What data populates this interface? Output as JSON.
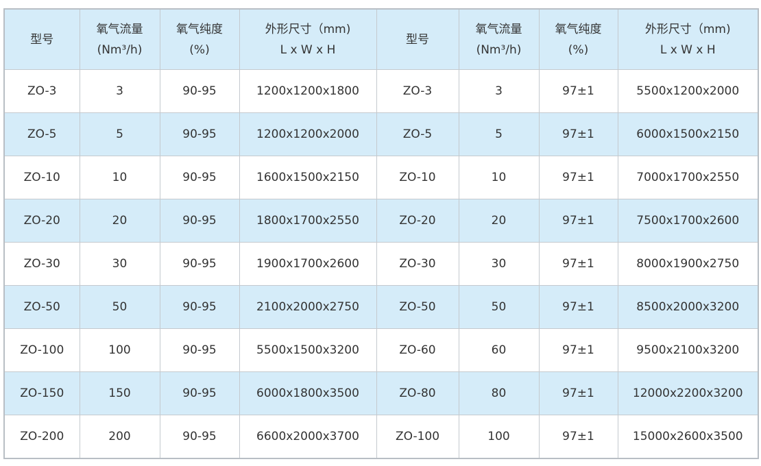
{
  "colors": {
    "header_bg": "#d5ecf9",
    "stripe_bg": "#d5ecf9",
    "border": "#c4c9ce"
  },
  "headers": [
    [
      "型号",
      ""
    ],
    [
      "氧气流量",
      "(Nm³/h)"
    ],
    [
      "氧气纯度",
      "(%)"
    ],
    [
      "外形尺寸（mm)",
      "L x W x H"
    ],
    [
      "型号",
      ""
    ],
    [
      "氧气流量",
      "(Nm³/h)"
    ],
    [
      "氧气纯度",
      "(%)"
    ],
    [
      "外形尺寸（mm)",
      "L x W x H"
    ]
  ],
  "rows": [
    [
      "ZO-3",
      "3",
      "90-95",
      "1200x1200x1800",
      "ZO-3",
      "3",
      "97±1",
      "5500x1200x2000"
    ],
    [
      "ZO-5",
      "5",
      "90-95",
      "1200x1200x2000",
      "ZO-5",
      "5",
      "97±1",
      "6000x1500x2150"
    ],
    [
      "ZO-10",
      "10",
      "90-95",
      "1600x1500x2150",
      "ZO-10",
      "10",
      "97±1",
      "7000x1700x2550"
    ],
    [
      "ZO-20",
      "20",
      "90-95",
      "1800x1700x2550",
      "ZO-20",
      "20",
      "97±1",
      "7500x1700x2600"
    ],
    [
      "ZO-30",
      "30",
      "90-95",
      "1900x1700x2600",
      "ZO-30",
      "30",
      "97±1",
      "8000x1900x2750"
    ],
    [
      "ZO-50",
      "50",
      "90-95",
      "2100x2000x2750",
      "ZO-50",
      "50",
      "97±1",
      "8500x2000x3200"
    ],
    [
      "ZO-100",
      "100",
      "90-95",
      "5500x1500x3200",
      "ZO-60",
      "60",
      "97±1",
      "9500x2100x3200"
    ],
    [
      "ZO-150",
      "150",
      "90-95",
      "6000x1800x3500",
      "ZO-80",
      "80",
      "97±1",
      "12000x2200x3200"
    ],
    [
      "ZO-200",
      "200",
      "90-95",
      "6600x2000x3700",
      "ZO-100",
      "100",
      "97±1",
      "15000x2600x3500"
    ]
  ]
}
